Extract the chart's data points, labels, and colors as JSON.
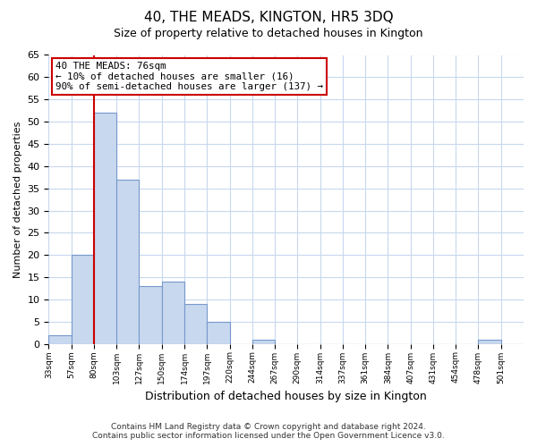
{
  "title": "40, THE MEADS, KINGTON, HR5 3DQ",
  "subtitle": "Size of property relative to detached houses in Kington",
  "xlabel": "Distribution of detached houses by size in Kington",
  "ylabel": "Number of detached properties",
  "bin_labels": [
    "33sqm",
    "57sqm",
    "80sqm",
    "103sqm",
    "127sqm",
    "150sqm",
    "174sqm",
    "197sqm",
    "220sqm",
    "244sqm",
    "267sqm",
    "290sqm",
    "314sqm",
    "337sqm",
    "361sqm",
    "384sqm",
    "407sqm",
    "431sqm",
    "454sqm",
    "478sqm",
    "501sqm"
  ],
  "bar_values": [
    2,
    20,
    52,
    37,
    13,
    14,
    9,
    5,
    0,
    1,
    0,
    0,
    0,
    0,
    0,
    0,
    0,
    0,
    0,
    1,
    0
  ],
  "bar_fill_color": "#c8d8ee",
  "bar_edge_color": "#7799cc",
  "marker_line_index": 2,
  "marker_line_color": "#cc0000",
  "ylim": [
    0,
    65
  ],
  "yticks": [
    0,
    5,
    10,
    15,
    20,
    25,
    30,
    35,
    40,
    45,
    50,
    55,
    60,
    65
  ],
  "annotation_line1": "40 THE MEADS: 76sqm",
  "annotation_line2": "← 10% of detached houses are smaller (16)",
  "annotation_line3": "90% of semi-detached houses are larger (137) →",
  "annotation_box_color": "#ffffff",
  "annotation_border_color": "#cc0000",
  "footer_line1": "Contains HM Land Registry data © Crown copyright and database right 2024.",
  "footer_line2": "Contains public sector information licensed under the Open Government Licence v3.0.",
  "background_color": "#ffffff",
  "grid_color": "#c8d8ee"
}
